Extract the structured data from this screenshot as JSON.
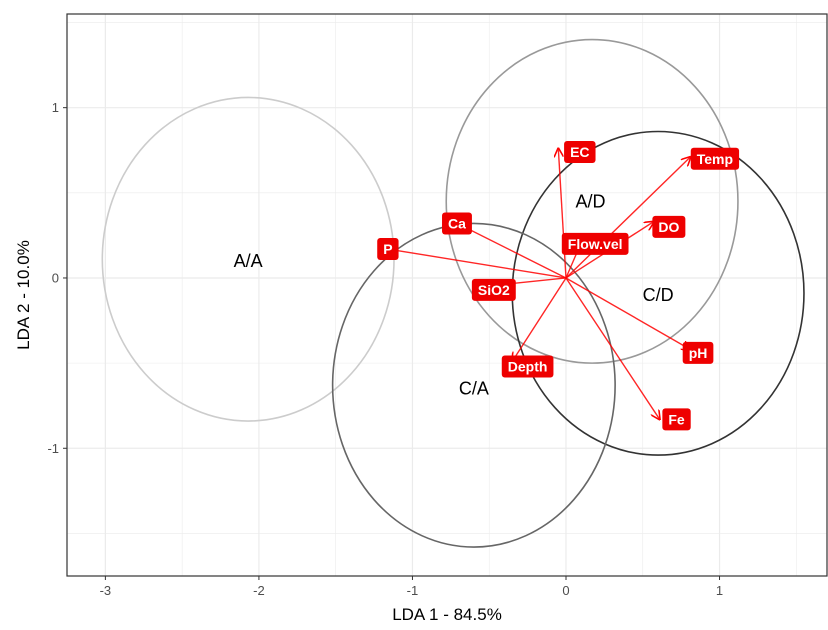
{
  "chart_data": {
    "type": "scatter",
    "subtype": "lda-biplot",
    "xlabel": "LDA 1 - 84.5%",
    "ylabel": "LDA 2 - 10.0%",
    "xlim": [
      -3.25,
      1.7
    ],
    "ylim": [
      -1.75,
      1.55
    ],
    "x_ticks": [
      -3,
      -2,
      -1,
      0,
      1
    ],
    "y_ticks": [
      -1,
      0,
      1
    ],
    "x_tick_labels": [
      "-3",
      "-2",
      "-1",
      "0",
      "1"
    ],
    "y_tick_labels": [
      "-1",
      "0",
      "1"
    ],
    "grid": true,
    "origin": [
      0,
      0
    ],
    "groups": [
      {
        "name": "A/A",
        "label_x": -2.07,
        "label_y": 0.1,
        "ellipse": {
          "cx": -2.07,
          "cy": 0.11,
          "rx": 0.95,
          "ry": 0.95
        },
        "color": "#cccccc"
      },
      {
        "name": "A/D",
        "label_x": 0.16,
        "label_y": 0.45,
        "ellipse": {
          "cx": 0.17,
          "cy": 0.45,
          "rx": 0.95,
          "ry": 0.95
        },
        "color": "#999999"
      },
      {
        "name": "C/D",
        "label_x": 0.6,
        "label_y": -0.1,
        "ellipse": {
          "cx": 0.6,
          "cy": -0.09,
          "rx": 0.95,
          "ry": 0.95
        },
        "color": "#333333"
      },
      {
        "name": "C/A",
        "label_x": -0.6,
        "label_y": -0.65,
        "ellipse": {
          "cx": -0.6,
          "cy": -0.63,
          "rx": 0.92,
          "ry": 0.95
        },
        "color": "#666666"
      }
    ],
    "vectors": [
      {
        "name": "EC",
        "x": -0.05,
        "y": 0.76,
        "label_x": 0.09,
        "label_y": 0.74
      },
      {
        "name": "Temp",
        "x": 0.81,
        "y": 0.71,
        "label_x": 0.97,
        "label_y": 0.7
      },
      {
        "name": "Ca",
        "x": -0.73,
        "y": 0.33,
        "label_x": -0.71,
        "label_y": 0.32
      },
      {
        "name": "DO",
        "x": 0.57,
        "y": 0.33,
        "label_x": 0.67,
        "label_y": 0.3
      },
      {
        "name": "P",
        "x": -1.16,
        "y": 0.17,
        "label_x": -1.16,
        "label_y": 0.17
      },
      {
        "name": "Flow.vel",
        "x": 0.1,
        "y": 0.21,
        "label_x": 0.19,
        "label_y": 0.2
      },
      {
        "name": "SiO2",
        "x": -0.43,
        "y": -0.04,
        "label_x": -0.47,
        "label_y": -0.07
      },
      {
        "name": "pH",
        "x": 0.81,
        "y": -0.42,
        "label_x": 0.86,
        "label_y": -0.44
      },
      {
        "name": "Depth",
        "x": -0.35,
        "y": -0.49,
        "label_x": -0.25,
        "label_y": -0.52
      },
      {
        "name": "Fe",
        "x": 0.61,
        "y": -0.83,
        "label_x": 0.72,
        "label_y": -0.83
      }
    ],
    "colors": {
      "arrow": "#ff0000",
      "label_fill": "#ee0000",
      "label_text": "#ffffff",
      "grid": "#ebebeb",
      "panel_border": "#333333"
    }
  }
}
